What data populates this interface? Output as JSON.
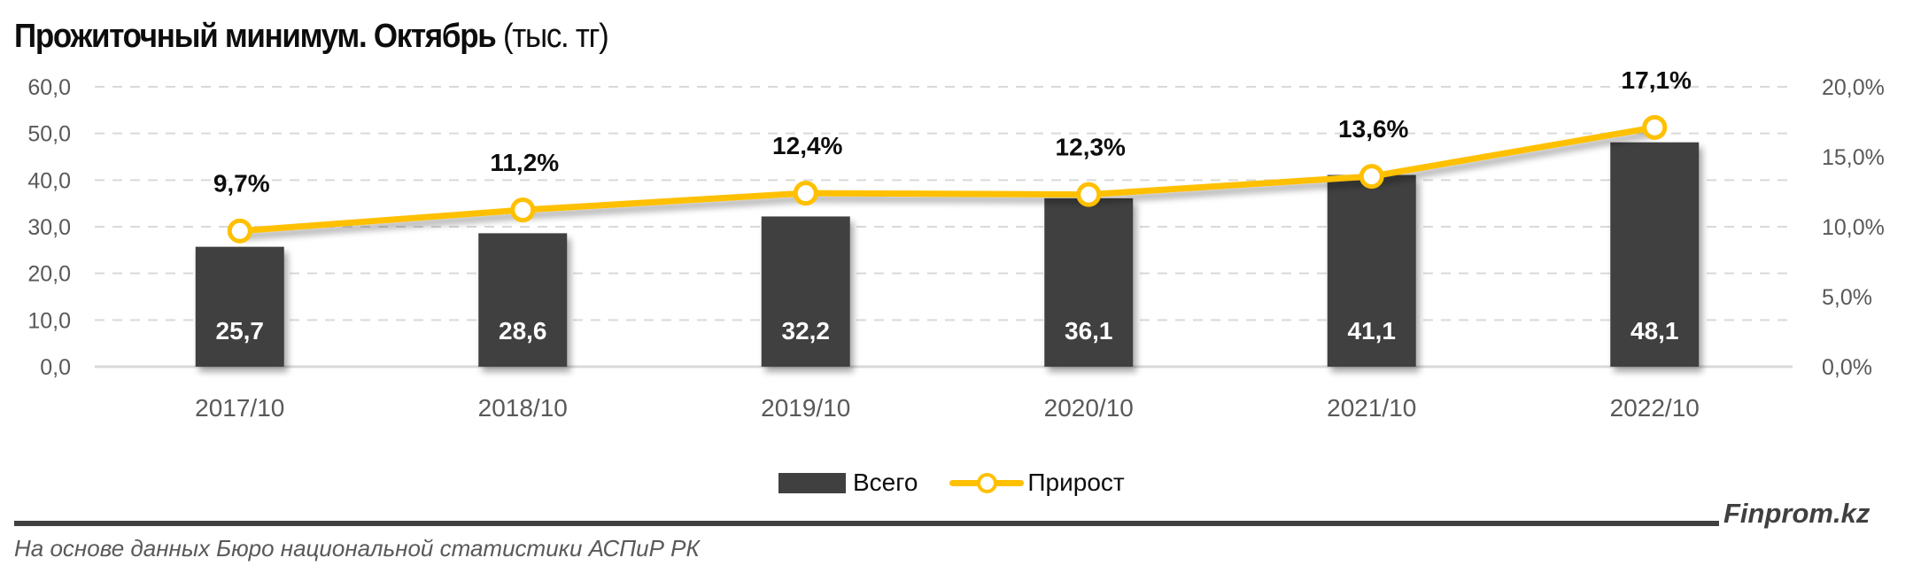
{
  "header": {
    "title_bold": "Прожиточный минимум. Октябрь",
    "title_unit": "(тыс. тг)"
  },
  "legend": {
    "bar_label": "Всего",
    "line_label": "Прирост"
  },
  "footer": {
    "source": "На основе данных Бюро национальной статистики АСПиР РК",
    "brand": "Finprom.kz"
  },
  "colors": {
    "bar": "#404040",
    "line": "#FFC000",
    "grid": "#D9D9D9",
    "axis_text": "#595959"
  },
  "chart_data": {
    "type": "bar+line",
    "title": "Прожиточный минимум. Октябрь (тыс. тг)",
    "xlabel": "",
    "ylabel": "",
    "categories": [
      "2017/10",
      "2018/10",
      "2019/10",
      "2020/10",
      "2021/10",
      "2022/10"
    ],
    "series": [
      {
        "name": "Всего",
        "type": "bar",
        "axis": "left",
        "values": [
          25.7,
          28.6,
          32.2,
          36.1,
          41.1,
          48.1
        ],
        "labels": [
          "25,7",
          "28,6",
          "32,2",
          "36,1",
          "41,1",
          "48,1"
        ]
      },
      {
        "name": "Прирост",
        "type": "line",
        "axis": "right",
        "values": [
          9.7,
          11.2,
          12.4,
          12.3,
          13.6,
          17.1
        ],
        "labels": [
          "9,7%",
          "11,2%",
          "12,4%",
          "12,3%",
          "13,6%",
          "17,1%"
        ]
      }
    ],
    "left_axis": {
      "ylim": [
        0,
        60
      ],
      "ticks": [
        0,
        10,
        20,
        30,
        40,
        50,
        60
      ],
      "tick_labels": [
        "0,0",
        "10,0",
        "20,0",
        "30,0",
        "40,0",
        "50,0",
        "60,0"
      ]
    },
    "right_axis": {
      "ylim": [
        0,
        20
      ],
      "ticks": [
        0,
        5,
        10,
        15,
        20
      ],
      "tick_labels": [
        "0,0%",
        "5,0%",
        "10,0%",
        "15,0%",
        "20,0%"
      ]
    },
    "grid": true,
    "legend_position": "bottom"
  }
}
